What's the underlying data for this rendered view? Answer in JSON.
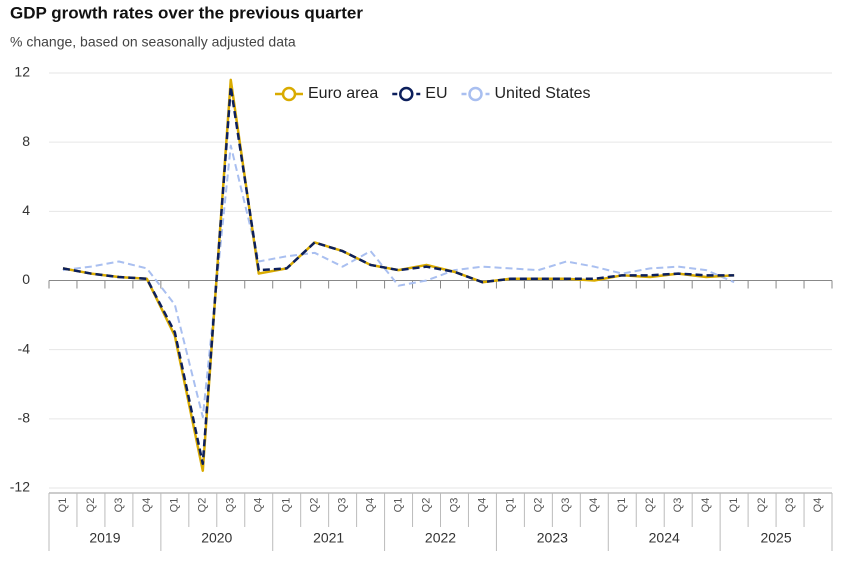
{
  "chart_data": {
    "type": "line",
    "title": "GDP growth rates over the previous quarter",
    "subtitle": "% change, based on seasonally adjusted data",
    "categories": [
      "Q1",
      "Q2",
      "Q3",
      "Q4",
      "Q1",
      "Q2",
      "Q3",
      "Q4",
      "Q1",
      "Q2",
      "Q3",
      "Q4",
      "Q1",
      "Q2",
      "Q3",
      "Q4",
      "Q1",
      "Q2",
      "Q3",
      "Q4",
      "Q1",
      "Q2",
      "Q3",
      "Q4",
      "Q1",
      "Q2",
      "Q3",
      "Q4"
    ],
    "years": [
      "2019",
      "2020",
      "2021",
      "2022",
      "2023",
      "2024",
      "2025"
    ],
    "ylim": [
      -12,
      12
    ],
    "yticks": [
      -12,
      -8,
      -4,
      0,
      4,
      8,
      12
    ],
    "grid": true,
    "series": [
      {
        "name": "Euro area",
        "color": "#d9ab00",
        "dash": false,
        "values": [
          0.7,
          0.4,
          0.2,
          0.1,
          -3.2,
          -11.0,
          11.6,
          0.4,
          0.7,
          2.2,
          1.7,
          0.9,
          0.6,
          0.9,
          0.5,
          -0.1,
          0.1,
          0.1,
          0.1,
          0.0,
          0.3,
          0.2,
          0.4,
          0.2,
          0.3,
          null,
          null,
          null
        ]
      },
      {
        "name": "EU",
        "color": "#0c1f5c",
        "dash": true,
        "values": [
          0.7,
          0.4,
          0.2,
          0.1,
          -3.0,
          -10.6,
          11.2,
          0.6,
          0.7,
          2.2,
          1.7,
          0.9,
          0.6,
          0.8,
          0.5,
          -0.1,
          0.1,
          0.1,
          0.1,
          0.1,
          0.3,
          0.3,
          0.4,
          0.3,
          0.3,
          null,
          null,
          null
        ]
      },
      {
        "name": "United States",
        "color": "#a9bff0",
        "dash": true,
        "values": [
          0.6,
          0.8,
          1.1,
          0.7,
          -1.4,
          -7.9,
          7.8,
          1.1,
          1.4,
          1.6,
          0.8,
          1.7,
          -0.3,
          0.0,
          0.6,
          0.8,
          0.7,
          0.6,
          1.1,
          0.8,
          0.4,
          0.7,
          0.8,
          0.6,
          -0.1,
          null,
          null,
          null
        ]
      }
    ]
  }
}
